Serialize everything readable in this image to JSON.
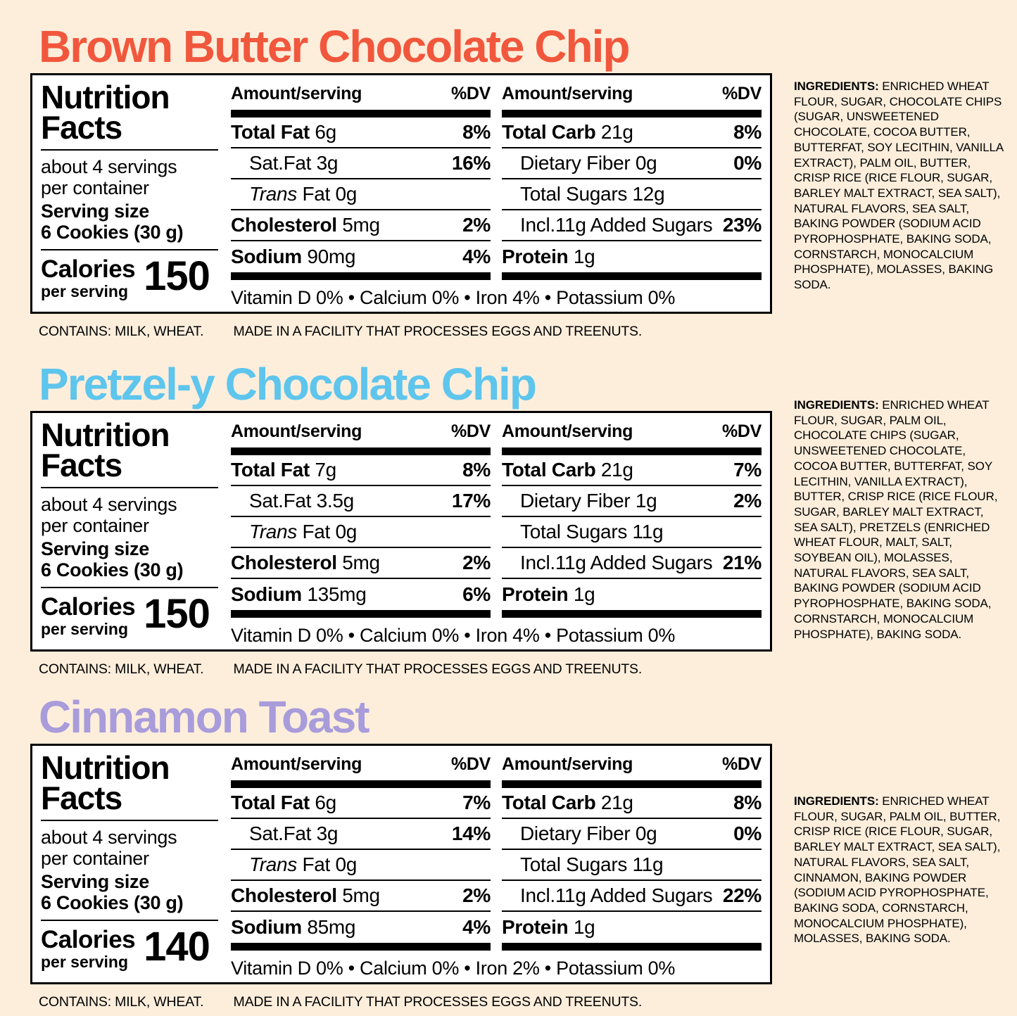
{
  "page": {
    "background": "#FDEEDC",
    "text_color": "#000000"
  },
  "sections": [
    {
      "title": "Brown Butter Chocolate Chip",
      "title_color": "#F1573C",
      "panel": {
        "brand_line1": "Nutrition",
        "brand_line2": "Facts",
        "servings_line1": "about 4 servings",
        "servings_line2": "per container",
        "serving_size_label": "Serving size",
        "serving_size_value": "6 Cookies (30 g)",
        "calories_label": "Calories",
        "calories_sub": "per serving",
        "calories_value": "150",
        "col_header_amount": "Amount/serving",
        "col_header_dv": "%DV",
        "left_rows": [
          {
            "prefix": "Total Fat",
            "prefix_style": "bold",
            "text": " 6g",
            "dv": "8%",
            "indent": false
          },
          {
            "prefix": "",
            "prefix_style": "none",
            "text": "Sat.Fat 3g",
            "dv": "16%",
            "indent": true
          },
          {
            "prefix": "Trans",
            "prefix_style": "italic",
            "text": " Fat 0g",
            "dv": "",
            "indent": true
          },
          {
            "prefix": "Cholesterol",
            "prefix_style": "bold",
            "text": " 5mg",
            "dv": "2%",
            "indent": false
          },
          {
            "prefix": "Sodium",
            "prefix_style": "bold",
            "text": " 90mg",
            "dv": "4%",
            "indent": false
          }
        ],
        "right_rows": [
          {
            "prefix": "Total Carb",
            "prefix_style": "bold",
            "text": " 21g",
            "dv": "8%",
            "indent": false
          },
          {
            "prefix": "",
            "prefix_style": "none",
            "text": "Dietary Fiber 0g",
            "dv": "0%",
            "indent": true
          },
          {
            "prefix": "",
            "prefix_style": "none",
            "text": "Total Sugars 12g",
            "dv": "",
            "indent": true
          },
          {
            "prefix": "",
            "prefix_style": "none",
            "text": "Incl.11g Added Sugars",
            "dv": "23%",
            "indent": true
          },
          {
            "prefix": "Protein",
            "prefix_style": "bold",
            "text": " 1g",
            "dv": "",
            "indent": false
          }
        ],
        "vitamin_line": "Vitamin D 0% • Calcium 0% • Iron 4% • Potassium 0%"
      },
      "footer": {
        "contains": "CONTAINS: MILK, WHEAT.",
        "made": "MADE IN A FACILITY THAT PROCESSES EGGS AND TREENUTS."
      },
      "ingredients": {
        "label": "INGREDIENTS:",
        "text": "ENRICHED WHEAT FLOUR, SUGAR, CHOCOLATE CHIPS (SUGAR, UNSWEETENED CHOCOLATE, COCOA BUTTER, BUTTERFAT, SOY LECITHIN, VANILLA EXTRACT), PALM OIL, BUTTER, CRISP RICE (RICE FLOUR, SUGAR, BARLEY MALT EXTRACT, SEA SALT), NATURAL FLAVORS, SEA SALT, BAKING POWDER (SODIUM ACID PYROPHOSPHATE, BAKING SODA, CORNSTARCH, MONOCALCIUM PHOSPHATE), MOLASSES, BAKING SODA."
      }
    },
    {
      "title": "Pretzel-y Chocolate Chip",
      "title_color": "#5EC5ED",
      "panel": {
        "brand_line1": "Nutrition",
        "brand_line2": "Facts",
        "servings_line1": "about 4 servings",
        "servings_line2": "per container",
        "serving_size_label": "Serving size",
        "serving_size_value": "6 Cookies (30 g)",
        "calories_label": "Calories",
        "calories_sub": "per serving",
        "calories_value": "150",
        "col_header_amount": "Amount/serving",
        "col_header_dv": "%DV",
        "left_rows": [
          {
            "prefix": "Total Fat",
            "prefix_style": "bold",
            "text": " 7g",
            "dv": "8%",
            "indent": false
          },
          {
            "prefix": "",
            "prefix_style": "none",
            "text": "Sat.Fat 3.5g",
            "dv": "17%",
            "indent": true
          },
          {
            "prefix": "Trans",
            "prefix_style": "italic",
            "text": " Fat 0g",
            "dv": "",
            "indent": true
          },
          {
            "prefix": "Cholesterol",
            "prefix_style": "bold",
            "text": " 5mg",
            "dv": "2%",
            "indent": false
          },
          {
            "prefix": "Sodium",
            "prefix_style": "bold",
            "text": " 135mg",
            "dv": "6%",
            "indent": false
          }
        ],
        "right_rows": [
          {
            "prefix": "Total Carb",
            "prefix_style": "bold",
            "text": " 21g",
            "dv": "7%",
            "indent": false
          },
          {
            "prefix": "",
            "prefix_style": "none",
            "text": "Dietary Fiber 1g",
            "dv": "2%",
            "indent": true
          },
          {
            "prefix": "",
            "prefix_style": "none",
            "text": "Total Sugars 11g",
            "dv": "",
            "indent": true
          },
          {
            "prefix": "",
            "prefix_style": "none",
            "text": "Incl.11g Added Sugars",
            "dv": "21%",
            "indent": true
          },
          {
            "prefix": "Protein",
            "prefix_style": "bold",
            "text": " 1g",
            "dv": "",
            "indent": false
          }
        ],
        "vitamin_line": "Vitamin D 0% • Calcium 0% • Iron 4% • Potassium 0%"
      },
      "footer": {
        "contains": "CONTAINS: MILK, WHEAT.",
        "made": "MADE IN A FACILITY THAT PROCESSES EGGS AND TREENUTS."
      },
      "ingredients": {
        "label": "INGREDIENTS:",
        "text": "ENRICHED WHEAT FLOUR, SUGAR, PALM OIL, CHOCOLATE CHIPS (SUGAR, UNSWEETENED CHOCOLATE, COCOA BUTTER, BUTTERFAT, SOY LECITHIN, VANILLA EXTRACT), BUTTER, CRISP RICE (RICE FLOUR, SUGAR, BARLEY MALT EXTRACT, SEA SALT), PRETZELS (ENRICHED WHEAT FLOUR, MALT, SALT, SOYBEAN OIL), MOLASSES, NATURAL FLAVORS, SEA SALT, BAKING POWDER (SODIUM ACID PYROPHOSPHATE, BAKING SODA, CORNSTARCH, MONOCALCIUM PHOSPHATE), BAKING SODA."
      }
    },
    {
      "title": "Cinnamon Toast",
      "title_color": "#A89CDB",
      "panel": {
        "brand_line1": "Nutrition",
        "brand_line2": "Facts",
        "servings_line1": "about 4 servings",
        "servings_line2": "per container",
        "serving_size_label": "Serving size",
        "serving_size_value": "6 Cookies (30 g)",
        "calories_label": "Calories",
        "calories_sub": "per serving",
        "calories_value": "140",
        "col_header_amount": "Amount/serving",
        "col_header_dv": "%DV",
        "left_rows": [
          {
            "prefix": "Total Fat",
            "prefix_style": "bold",
            "text": " 6g",
            "dv": "7%",
            "indent": false
          },
          {
            "prefix": "",
            "prefix_style": "none",
            "text": "Sat.Fat 3g",
            "dv": "14%",
            "indent": true
          },
          {
            "prefix": "Trans",
            "prefix_style": "italic",
            "text": " Fat 0g",
            "dv": "",
            "indent": true
          },
          {
            "prefix": "Cholesterol",
            "prefix_style": "bold",
            "text": " 5mg",
            "dv": "2%",
            "indent": false
          },
          {
            "prefix": "Sodium",
            "prefix_style": "bold",
            "text": " 85mg",
            "dv": "4%",
            "indent": false
          }
        ],
        "right_rows": [
          {
            "prefix": "Total Carb",
            "prefix_style": "bold",
            "text": " 21g",
            "dv": "8%",
            "indent": false
          },
          {
            "prefix": "",
            "prefix_style": "none",
            "text": "Dietary Fiber 0g",
            "dv": "0%",
            "indent": true
          },
          {
            "prefix": "",
            "prefix_style": "none",
            "text": "Total Sugars 11g",
            "dv": "",
            "indent": true
          },
          {
            "prefix": "",
            "prefix_style": "none",
            "text": "Incl.11g Added Sugars",
            "dv": "22%",
            "indent": true
          },
          {
            "prefix": "Protein",
            "prefix_style": "bold",
            "text": " 1g",
            "dv": "",
            "indent": false
          }
        ],
        "vitamin_line": "Vitamin D 0% • Calcium 0% • Iron 2% • Potassium 0%"
      },
      "footer": {
        "contains": "CONTAINS: MILK, WHEAT.",
        "made": "MADE IN A FACILITY THAT PROCESSES EGGS AND TREENUTS."
      },
      "ingredients": {
        "label": "INGREDIENTS:",
        "text": "ENRICHED WHEAT FLOUR, SUGAR, PALM OIL, BUTTER, CRISP RICE (RICE FLOUR, SUGAR, BARLEY MALT EXTRACT, SEA SALT), NATURAL FLAVORS, SEA SALT, CINNAMON, BAKING POWDER (SODIUM ACID PYROPHOSPHATE, BAKING SODA, CORNSTARCH, MONOCALCIUM PHOSPHATE), MOLASSES, BAKING SODA."
      }
    }
  ]
}
